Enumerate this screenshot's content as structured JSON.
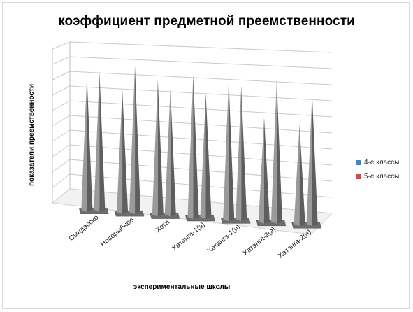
{
  "chart_data": {
    "type": "bar",
    "style": "3d-cone",
    "title": "коэффициент предметной преемственности",
    "xlabel": "экспериментальные школы",
    "ylabel": "показатели преемственности",
    "categories": [
      "Сындасско",
      "Новорыбное",
      "Хета",
      "Хатанга-1(э)",
      "Хатанга-1(и)",
      "Хатанга-2(э)",
      "Хатанга-2(и)"
    ],
    "series": [
      {
        "name": "4-е классы",
        "color": "#4f81bd",
        "values": [
          0.83,
          0.76,
          0.84,
          0.88,
          0.86,
          0.65,
          0.62
        ]
      },
      {
        "name": "5-е классы",
        "color": "#c0504d",
        "values": [
          0.86,
          0.91,
          0.78,
          0.77,
          0.83,
          0.88,
          0.81
        ]
      }
    ],
    "ylim": [
      0,
      1
    ],
    "grid": true,
    "legend_position": "right"
  }
}
